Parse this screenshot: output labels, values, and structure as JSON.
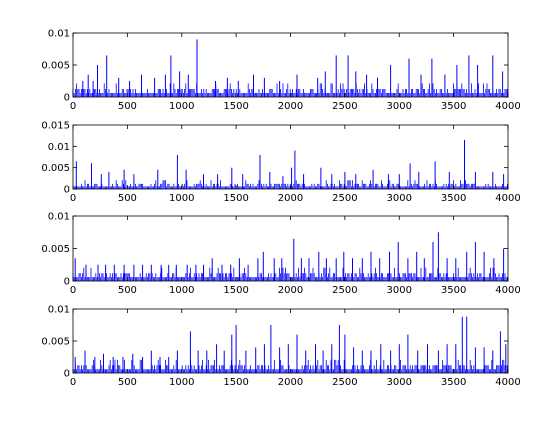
{
  "colors": {
    "series": "#0000ff",
    "axes": "#000000",
    "background": "#ffffff"
  },
  "chart_data": [
    {
      "type": "bar",
      "ylim": [
        0,
        0.01
      ],
      "xlim": [
        0,
        4000
      ],
      "xticks": [
        "0",
        "500",
        "1000",
        "1500",
        "2000",
        "2500",
        "3000",
        "3500",
        "4000"
      ],
      "yticks": [
        "0",
        "0.005",
        "0.01"
      ],
      "grid": false,
      "baseline": 0.00125,
      "spikes": [
        {
          "x": 90,
          "y": 0.0025
        },
        {
          "x": 140,
          "y": 0.0035
        },
        {
          "x": 185,
          "y": 0.0025
        },
        {
          "x": 225,
          "y": 0.005
        },
        {
          "x": 310,
          "y": 0.0065
        },
        {
          "x": 420,
          "y": 0.003
        },
        {
          "x": 520,
          "y": 0.0025
        },
        {
          "x": 630,
          "y": 0.0035
        },
        {
          "x": 750,
          "y": 0.003
        },
        {
          "x": 850,
          "y": 0.0035
        },
        {
          "x": 900,
          "y": 0.0065
        },
        {
          "x": 980,
          "y": 0.004
        },
        {
          "x": 1060,
          "y": 0.0035
        },
        {
          "x": 1140,
          "y": 0.009
        },
        {
          "x": 1310,
          "y": 0.0025
        },
        {
          "x": 1420,
          "y": 0.003
        },
        {
          "x": 1520,
          "y": 0.0025
        },
        {
          "x": 1660,
          "y": 0.0035
        },
        {
          "x": 1760,
          "y": 0.003
        },
        {
          "x": 1900,
          "y": 0.0025
        },
        {
          "x": 2060,
          "y": 0.0035
        },
        {
          "x": 2250,
          "y": 0.003
        },
        {
          "x": 2320,
          "y": 0.004
        },
        {
          "x": 2420,
          "y": 0.0065
        },
        {
          "x": 2530,
          "y": 0.0065
        },
        {
          "x": 2600,
          "y": 0.004
        },
        {
          "x": 2700,
          "y": 0.0035
        },
        {
          "x": 2800,
          "y": 0.003
        },
        {
          "x": 2920,
          "y": 0.005
        },
        {
          "x": 3090,
          "y": 0.006
        },
        {
          "x": 3200,
          "y": 0.0035
        },
        {
          "x": 3300,
          "y": 0.006
        },
        {
          "x": 3420,
          "y": 0.0035
        },
        {
          "x": 3530,
          "y": 0.005
        },
        {
          "x": 3640,
          "y": 0.0065
        },
        {
          "x": 3720,
          "y": 0.005
        },
        {
          "x": 3860,
          "y": 0.0065
        },
        {
          "x": 3950,
          "y": 0.004
        }
      ]
    },
    {
      "type": "bar",
      "ylim": [
        0,
        0.015
      ],
      "xlim": [
        0,
        4000
      ],
      "xticks": [
        "0",
        "500",
        "1000",
        "1500",
        "2000",
        "2500",
        "3000",
        "3500",
        "4000"
      ],
      "yticks": [
        "0",
        "0.005",
        "0.01",
        "0.015"
      ],
      "grid": false,
      "baseline": 0.0012,
      "spikes": [
        {
          "x": 30,
          "y": 0.0065
        },
        {
          "x": 170,
          "y": 0.006
        },
        {
          "x": 260,
          "y": 0.0035
        },
        {
          "x": 330,
          "y": 0.004
        },
        {
          "x": 470,
          "y": 0.0045
        },
        {
          "x": 560,
          "y": 0.0035
        },
        {
          "x": 780,
          "y": 0.0045
        },
        {
          "x": 960,
          "y": 0.008
        },
        {
          "x": 1040,
          "y": 0.0045
        },
        {
          "x": 1200,
          "y": 0.0035
        },
        {
          "x": 1330,
          "y": 0.0035
        },
        {
          "x": 1460,
          "y": 0.005
        },
        {
          "x": 1560,
          "y": 0.0035
        },
        {
          "x": 1720,
          "y": 0.008
        },
        {
          "x": 1810,
          "y": 0.004
        },
        {
          "x": 1930,
          "y": 0.003
        },
        {
          "x": 2010,
          "y": 0.005
        },
        {
          "x": 2040,
          "y": 0.009
        },
        {
          "x": 2120,
          "y": 0.0035
        },
        {
          "x": 2280,
          "y": 0.005
        },
        {
          "x": 2380,
          "y": 0.0035
        },
        {
          "x": 2500,
          "y": 0.004
        },
        {
          "x": 2600,
          "y": 0.0035
        },
        {
          "x": 2760,
          "y": 0.0045
        },
        {
          "x": 2900,
          "y": 0.0035
        },
        {
          "x": 3000,
          "y": 0.0035
        },
        {
          "x": 3100,
          "y": 0.006
        },
        {
          "x": 3180,
          "y": 0.004
        },
        {
          "x": 3330,
          "y": 0.0065
        },
        {
          "x": 3460,
          "y": 0.004
        },
        {
          "x": 3600,
          "y": 0.0115
        },
        {
          "x": 3700,
          "y": 0.004
        },
        {
          "x": 3860,
          "y": 0.004
        },
        {
          "x": 3960,
          "y": 0.0035
        }
      ]
    },
    {
      "type": "bar",
      "ylim": [
        0,
        0.01
      ],
      "xlim": [
        0,
        4000
      ],
      "xticks": [
        "0",
        "500",
        "1000",
        "1500",
        "2000",
        "2500",
        "3000",
        "3500",
        "4000"
      ],
      "yticks": [
        "0",
        "0.005",
        "0.01"
      ],
      "grid": false,
      "baseline": 0.0012,
      "spikes": [
        {
          "x": 20,
          "y": 0.0035
        },
        {
          "x": 120,
          "y": 0.0025
        },
        {
          "x": 230,
          "y": 0.0025
        },
        {
          "x": 300,
          "y": 0.0025
        },
        {
          "x": 380,
          "y": 0.0025
        },
        {
          "x": 470,
          "y": 0.0025
        },
        {
          "x": 560,
          "y": 0.0025
        },
        {
          "x": 640,
          "y": 0.0025
        },
        {
          "x": 720,
          "y": 0.0025
        },
        {
          "x": 810,
          "y": 0.0025
        },
        {
          "x": 880,
          "y": 0.0025
        },
        {
          "x": 950,
          "y": 0.0025
        },
        {
          "x": 1050,
          "y": 0.0025
        },
        {
          "x": 1130,
          "y": 0.0025
        },
        {
          "x": 1200,
          "y": 0.0025
        },
        {
          "x": 1280,
          "y": 0.0035
        },
        {
          "x": 1370,
          "y": 0.0025
        },
        {
          "x": 1450,
          "y": 0.0025
        },
        {
          "x": 1530,
          "y": 0.0035
        },
        {
          "x": 1610,
          "y": 0.0025
        },
        {
          "x": 1700,
          "y": 0.0035
        },
        {
          "x": 1750,
          "y": 0.0045
        },
        {
          "x": 1850,
          "y": 0.0035
        },
        {
          "x": 1920,
          "y": 0.0035
        },
        {
          "x": 2030,
          "y": 0.0065
        },
        {
          "x": 2100,
          "y": 0.0035
        },
        {
          "x": 2170,
          "y": 0.0035
        },
        {
          "x": 2260,
          "y": 0.0045
        },
        {
          "x": 2330,
          "y": 0.0035
        },
        {
          "x": 2420,
          "y": 0.0035
        },
        {
          "x": 2490,
          "y": 0.0045
        },
        {
          "x": 2570,
          "y": 0.0035
        },
        {
          "x": 2660,
          "y": 0.0035
        },
        {
          "x": 2740,
          "y": 0.0045
        },
        {
          "x": 2820,
          "y": 0.0035
        },
        {
          "x": 2910,
          "y": 0.0045
        },
        {
          "x": 2990,
          "y": 0.006
        },
        {
          "x": 3080,
          "y": 0.0035
        },
        {
          "x": 3160,
          "y": 0.0045
        },
        {
          "x": 3230,
          "y": 0.0035
        },
        {
          "x": 3310,
          "y": 0.006
        },
        {
          "x": 3360,
          "y": 0.0075
        },
        {
          "x": 3440,
          "y": 0.0035
        },
        {
          "x": 3520,
          "y": 0.0035
        },
        {
          "x": 3620,
          "y": 0.0045
        },
        {
          "x": 3700,
          "y": 0.006
        },
        {
          "x": 3780,
          "y": 0.0045
        },
        {
          "x": 3870,
          "y": 0.0035
        },
        {
          "x": 3960,
          "y": 0.005
        }
      ]
    },
    {
      "type": "bar",
      "ylim": [
        0,
        0.01
      ],
      "xlim": [
        0,
        4000
      ],
      "xticks": [
        "0",
        "500",
        "1000",
        "1500",
        "2000",
        "2500",
        "3000",
        "3500",
        "4000"
      ],
      "yticks": [
        "0",
        "0.005",
        "0.01"
      ],
      "grid": false,
      "baseline": 0.0012,
      "spikes": [
        {
          "x": 20,
          "y": 0.0025
        },
        {
          "x": 110,
          "y": 0.0035
        },
        {
          "x": 200,
          "y": 0.0025
        },
        {
          "x": 280,
          "y": 0.003
        },
        {
          "x": 370,
          "y": 0.0025
        },
        {
          "x": 460,
          "y": 0.0025
        },
        {
          "x": 550,
          "y": 0.003
        },
        {
          "x": 640,
          "y": 0.0025
        },
        {
          "x": 720,
          "y": 0.0035
        },
        {
          "x": 800,
          "y": 0.0025
        },
        {
          "x": 880,
          "y": 0.0025
        },
        {
          "x": 960,
          "y": 0.0035
        },
        {
          "x": 1080,
          "y": 0.0065
        },
        {
          "x": 1150,
          "y": 0.0035
        },
        {
          "x": 1230,
          "y": 0.0035
        },
        {
          "x": 1320,
          "y": 0.0045
        },
        {
          "x": 1390,
          "y": 0.0035
        },
        {
          "x": 1460,
          "y": 0.006
        },
        {
          "x": 1500,
          "y": 0.0075
        },
        {
          "x": 1590,
          "y": 0.0035
        },
        {
          "x": 1680,
          "y": 0.004
        },
        {
          "x": 1760,
          "y": 0.0045
        },
        {
          "x": 1820,
          "y": 0.0075
        },
        {
          "x": 1900,
          "y": 0.004
        },
        {
          "x": 1980,
          "y": 0.0045
        },
        {
          "x": 2060,
          "y": 0.006
        },
        {
          "x": 2140,
          "y": 0.0035
        },
        {
          "x": 2230,
          "y": 0.0045
        },
        {
          "x": 2300,
          "y": 0.0035
        },
        {
          "x": 2380,
          "y": 0.0045
        },
        {
          "x": 2450,
          "y": 0.0075
        },
        {
          "x": 2500,
          "y": 0.006
        },
        {
          "x": 2580,
          "y": 0.004
        },
        {
          "x": 2660,
          "y": 0.0035
        },
        {
          "x": 2740,
          "y": 0.0035
        },
        {
          "x": 2830,
          "y": 0.0045
        },
        {
          "x": 2920,
          "y": 0.0035
        },
        {
          "x": 3000,
          "y": 0.0045
        },
        {
          "x": 3080,
          "y": 0.006
        },
        {
          "x": 3170,
          "y": 0.0035
        },
        {
          "x": 3260,
          "y": 0.0045
        },
        {
          "x": 3360,
          "y": 0.0035
        },
        {
          "x": 3440,
          "y": 0.0045
        },
        {
          "x": 3520,
          "y": 0.0045
        },
        {
          "x": 3580,
          "y": 0.0088
        },
        {
          "x": 3620,
          "y": 0.0088
        },
        {
          "x": 3700,
          "y": 0.004
        },
        {
          "x": 3780,
          "y": 0.004
        },
        {
          "x": 3860,
          "y": 0.0035
        },
        {
          "x": 3930,
          "y": 0.0065
        },
        {
          "x": 3980,
          "y": 0.0045
        }
      ]
    }
  ]
}
